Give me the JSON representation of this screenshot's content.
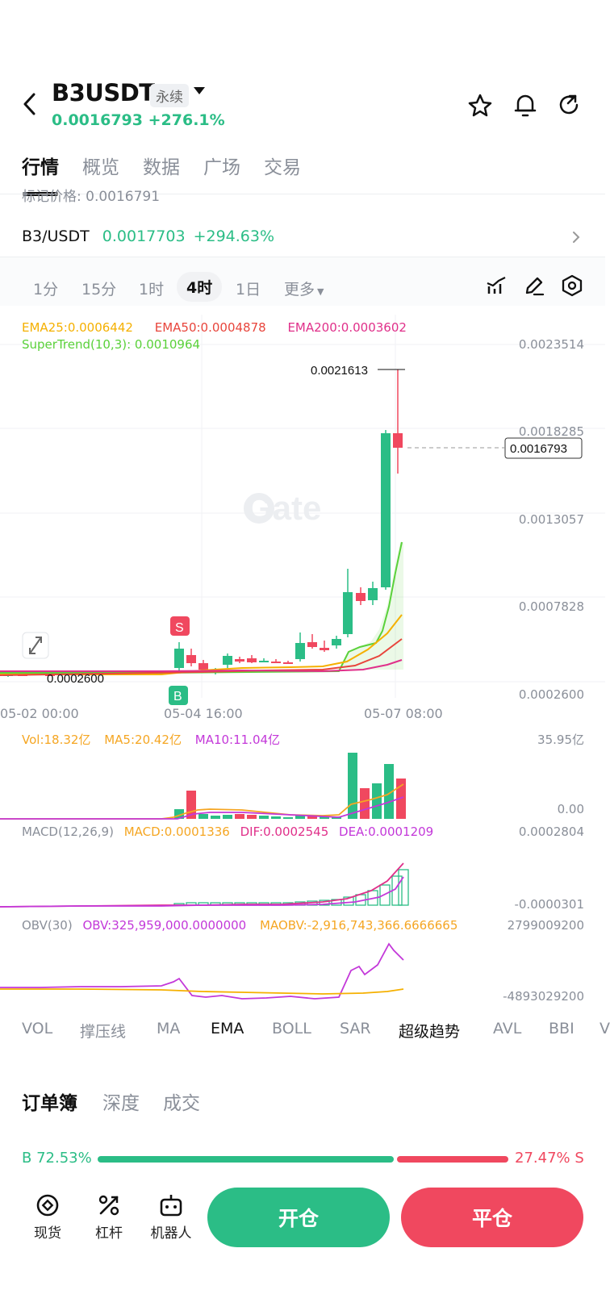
{
  "header": {
    "symbol": "B3USDT",
    "badge": "永续",
    "price": "0.0016793",
    "change": "+276.1%"
  },
  "tabs": [
    "行情",
    "概览",
    "数据",
    "广场",
    "交易"
  ],
  "mark_price_partial": "标记价格: 0.0016791",
  "pair_row": {
    "pair": "B3/USDT",
    "price": "0.0017703",
    "change": "+294.63%"
  },
  "timeframes": [
    "1分",
    "15分",
    "1时",
    "4时",
    "1日",
    "更多"
  ],
  "legend": {
    "ema25": "EMA25:0.0006442",
    "ema50": "EMA50:0.0004878",
    "ema200": "EMA200:0.0003602",
    "supertrend": "SuperTrend(10,3): 0.0010964"
  },
  "colors": {
    "up": "#2bbd86",
    "down": "#f0485f",
    "ema25": "#f5b000",
    "ema50": "#e8453c",
    "ema200": "#e0308a",
    "supertrend": "#5ad13a",
    "magenta": "#c338d9"
  },
  "price_axis": [
    "0.0023514",
    "0.0018285",
    "0.0013057",
    "0.0007828",
    "0.0002600"
  ],
  "high_label": "0.0021613",
  "current_price_tag": "0.0016793",
  "low_label_partial": "0.0002600",
  "time_axis": [
    "05-02 00:00",
    "05-04 16:00",
    "05-07 08:00"
  ],
  "signals": {
    "sell": "S",
    "buy": "B"
  },
  "watermark": "Gate",
  "vol": {
    "vol": "Vol:18.32亿",
    "ma5": "MA5:20.42亿",
    "ma10": "MA10:11.04亿",
    "axis_top": "35.95亿",
    "axis_bottom": "0.00"
  },
  "macd": {
    "name": "MACD(12,26,9)",
    "macd": "MACD:0.0001336",
    "dif": "DIF:0.0002545",
    "dea": "DEA:0.0001209",
    "axis_top": "0.0002804",
    "axis_bottom": "-0.0000301"
  },
  "obv": {
    "name": "OBV(30)",
    "obv": "OBV:325,959,000.0000000",
    "maobv": "MAOBV:-2,916,743,366.6666665",
    "axis_top": "2799009200",
    "axis_bottom": "-4893029200"
  },
  "indicator_tabs": [
    "VOL",
    "撑压线",
    "MA",
    "EMA",
    "BOLL",
    "SAR",
    "超级趋势",
    "AVL",
    "BBI",
    "V"
  ],
  "orderbook_tabs": [
    "订单簿",
    "深度",
    "成交"
  ],
  "ratio": {
    "buy": "B 72.53%",
    "sell": "27.47% S",
    "buy_fraction": 0.7253
  },
  "tools": [
    "现货",
    "杠杆",
    "机器人"
  ],
  "buttons": {
    "open": "开仓",
    "close": "平仓"
  }
}
